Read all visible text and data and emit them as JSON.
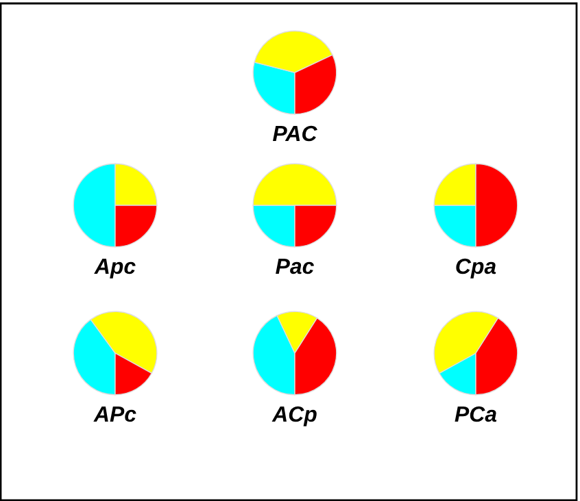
{
  "chart_data": [
    {
      "type": "pie",
      "title": "PAC",
      "categories": [
        null,
        null,
        null
      ],
      "values": [
        29,
        39,
        32
      ],
      "colors": [
        "#00ffff",
        "#ffff00",
        "#ff0000"
      ]
    },
    {
      "type": "pie",
      "title": "Apc",
      "categories": [
        null,
        null,
        null
      ],
      "values": [
        50,
        25,
        25
      ],
      "colors": [
        "#00ffff",
        "#ffff00",
        "#ff0000"
      ]
    },
    {
      "type": "pie",
      "title": "Pac",
      "categories": [
        null,
        null,
        null
      ],
      "values": [
        25,
        50,
        25
      ],
      "colors": [
        "#00ffff",
        "#ffff00",
        "#ff0000"
      ]
    },
    {
      "type": "pie",
      "title": "Cpa",
      "categories": [
        null,
        null,
        null
      ],
      "values": [
        25,
        25,
        50
      ],
      "colors": [
        "#00ffff",
        "#ffff00",
        "#ff0000"
      ]
    },
    {
      "type": "pie",
      "title": "APc",
      "categories": [
        null,
        null,
        null
      ],
      "values": [
        40,
        43,
        17
      ],
      "colors": [
        "#00ffff",
        "#ffff00",
        "#ff0000"
      ]
    },
    {
      "type": "pie",
      "title": "ACp",
      "categories": [
        null,
        null,
        null
      ],
      "values": [
        43,
        16,
        41
      ],
      "colors": [
        "#00ffff",
        "#ffff00",
        "#ff0000"
      ]
    },
    {
      "type": "pie",
      "title": "PCa",
      "categories": [
        null,
        null,
        null
      ],
      "values": [
        17,
        42,
        41
      ],
      "colors": [
        "#00ffff",
        "#ffff00",
        "#ff0000"
      ]
    }
  ]
}
